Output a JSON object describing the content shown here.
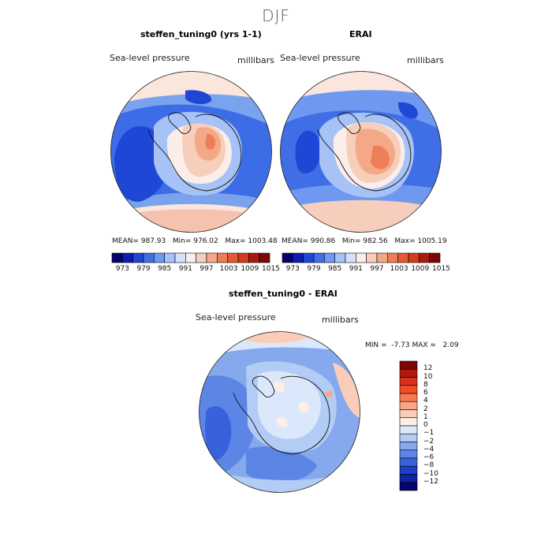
{
  "figure": {
    "season": "DJF"
  },
  "panels": [
    {
      "title": "steffen_tuning0 (yrs 1-1)",
      "field": "Sea-level pressure",
      "units": "millibars",
      "stats": {
        "mean_label": "MEAN=",
        "mean": "987.93",
        "min_label": "Min=",
        "min": "976.02",
        "max_label": "Max=",
        "max": "1003.48"
      }
    },
    {
      "title": "ERAI",
      "field": "Sea-level pressure",
      "units": "millibars",
      "stats": {
        "mean_label": "MEAN=",
        "mean": "990.86",
        "min_label": "Min=",
        "min": "982.56",
        "max_label": "Max=",
        "max": "1005.19"
      }
    },
    {
      "title": "steffen_tuning0 - ERAI",
      "field": "Sea-level pressure",
      "units": "millibars",
      "stats": {
        "min_label": "MIN =",
        "min": "-7.73",
        "max_label": "MAX =",
        "max": "2.09"
      }
    }
  ],
  "colorbar_abs": {
    "ticks": [
      "973",
      "979",
      "985",
      "991",
      "997",
      "1003",
      "1009",
      "1015"
    ],
    "colors": [
      "#08006e",
      "#0a1eb4",
      "#1f47d6",
      "#3f6ee6",
      "#6f98f0",
      "#a6c2f6",
      "#d2e2fa",
      "#fbeeea",
      "#f7cdbb",
      "#f3a987",
      "#ee7e57",
      "#e65a33",
      "#d23b1f",
      "#a81a10",
      "#7d0606"
    ]
  },
  "colorbar_diff": {
    "ticks": [
      "12",
      "10",
      "8",
      "6",
      "4",
      "2",
      "1",
      "0",
      "−1",
      "−2",
      "−4",
      "−6",
      "−8",
      "−10",
      "−12"
    ],
    "colors": [
      "#7d0606",
      "#b01a0e",
      "#d8301a",
      "#f04e26",
      "#f47a52",
      "#f8a687",
      "#fbcdb8",
      "#fdeee6",
      "#dbe8fb",
      "#b2ccf5",
      "#86a9ee",
      "#5d85e6",
      "#3a61dc",
      "#1d3fc9",
      "#0f23a6",
      "#08036e"
    ]
  }
}
